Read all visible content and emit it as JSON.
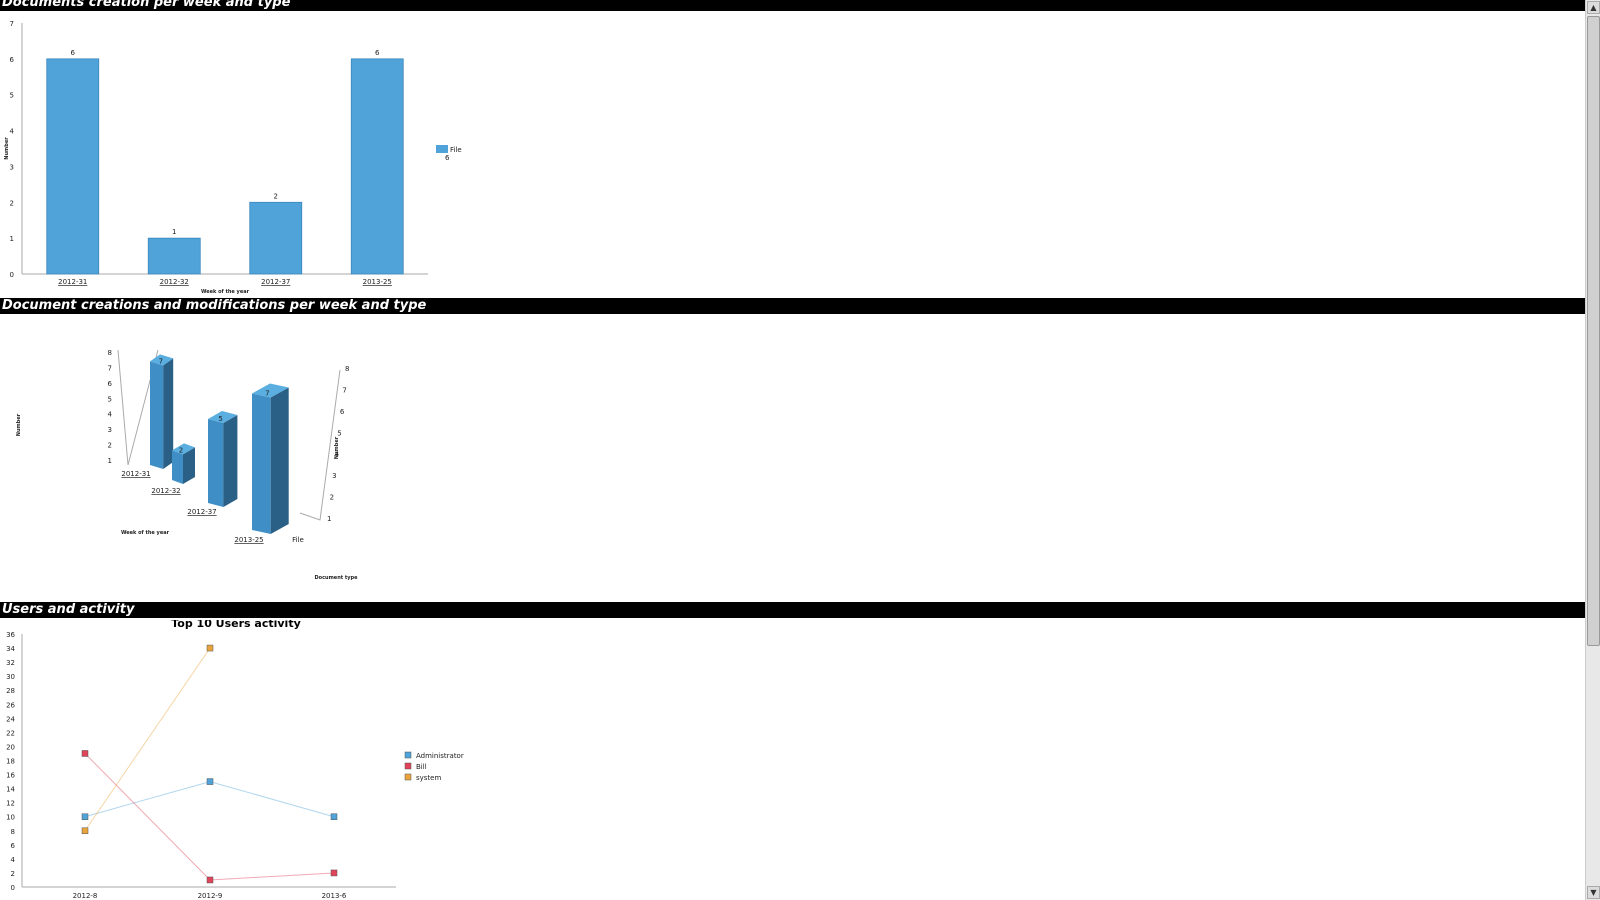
{
  "sections": [
    {
      "title": "Documents creation per week and type"
    },
    {
      "title": "Document creations and modifications per week and type"
    },
    {
      "title": "Users and activity"
    }
  ],
  "chart_data": [
    {
      "type": "bar",
      "categories": [
        "2012-31",
        "2012-32",
        "2012-37",
        "2013-25"
      ],
      "series": [
        {
          "name": "File",
          "values": [
            6,
            1,
            2,
            6
          ]
        }
      ],
      "title": "",
      "xlabel": "Week of the year",
      "ylabel": "Number",
      "ylim": [
        0,
        7
      ],
      "yticks": [
        0,
        1,
        2,
        3,
        4,
        5,
        6,
        7
      ],
      "legend": {
        "position": "right",
        "entries": [
          {
            "name": "File",
            "value": "6"
          }
        ]
      },
      "color": "#4fa3d9"
    },
    {
      "type": "bar",
      "style": "3d",
      "categories": [
        "2012-31",
        "2012-32",
        "2012-37",
        "2013-25"
      ],
      "series": [
        {
          "name": "File",
          "values": [
            7,
            2,
            5,
            7
          ]
        }
      ],
      "xlabel": "Week of the year",
      "ylabel": "Number",
      "zlabel": "Document type",
      "ylim": [
        1,
        8
      ],
      "yticks": [
        1,
        2,
        3,
        4,
        5,
        6,
        7,
        8
      ],
      "color": "#3f8fc6"
    },
    {
      "type": "line",
      "title": "Top 10 Users activity",
      "categories": [
        "2012-8",
        "2012-9",
        "2013-6"
      ],
      "series": [
        {
          "name": "Administrator",
          "values": [
            10,
            15,
            10
          ],
          "color": "#4fa3d9"
        },
        {
          "name": "Bill",
          "values": [
            19,
            1,
            2
          ],
          "color": "#e0435a"
        },
        {
          "name": "system",
          "values": [
            8,
            34,
            null
          ],
          "color": "#e8a33c"
        }
      ],
      "ylim": [
        0,
        36
      ],
      "yticks": [
        0,
        2,
        4,
        6,
        8,
        10,
        12,
        14,
        16,
        18,
        20,
        22,
        24,
        26,
        28,
        30,
        32,
        34,
        36
      ],
      "legend": {
        "position": "right"
      }
    }
  ],
  "scrollbar": {
    "up_glyph": "▲",
    "down_glyph": "▼"
  }
}
